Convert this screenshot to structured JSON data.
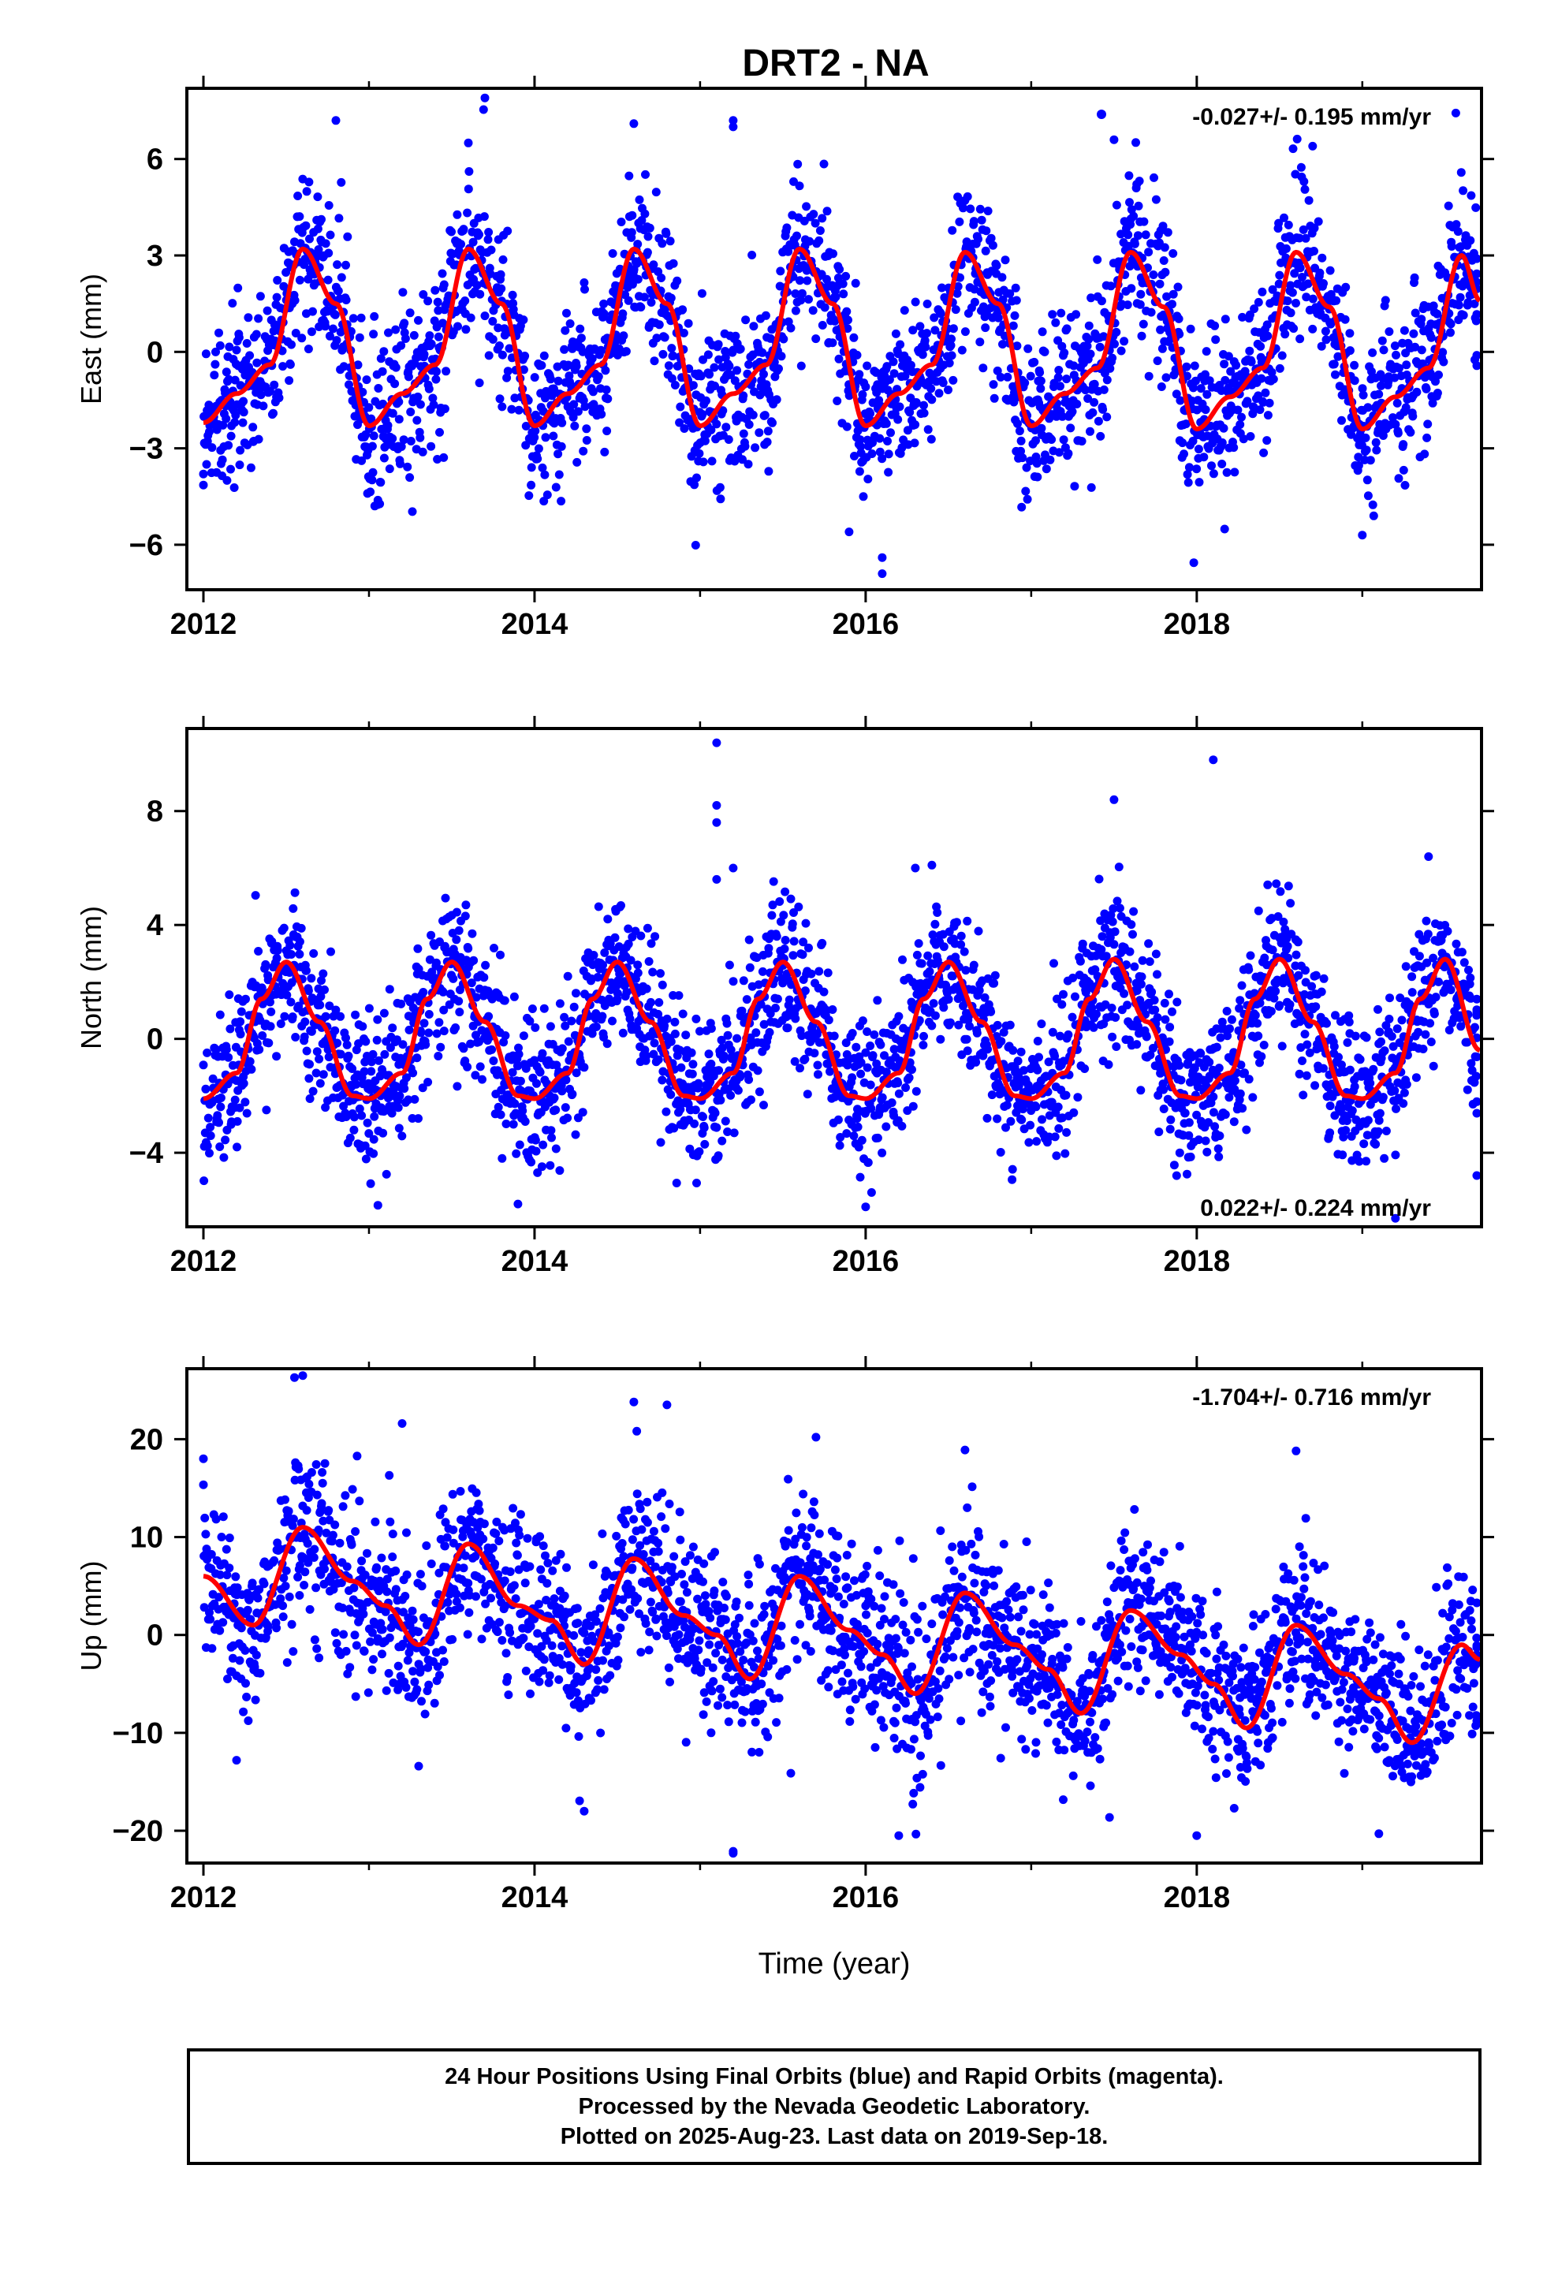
{
  "title": "DRT2 - NA",
  "caption": {
    "line1": "24 Hour Positions Using Final Orbits (blue) and Rapid Orbits (magenta).",
    "line2": "Processed by the Nevada Geodetic Laboratory.",
    "line3": "Plotted on 2025-Aug-23. Last data on 2019-Sep-18."
  },
  "colors": {
    "final_orbits": "#0000ff",
    "model_fit": "#ff0000",
    "frame": "#000000"
  },
  "chart_data": [
    {
      "type": "scatter",
      "component": "east",
      "ylabel": "East (mm)",
      "xlabel": "",
      "xlim": [
        2011.9,
        2019.72
      ],
      "ylim": [
        -7.4,
        8.2
      ],
      "xticks": [
        2012,
        2014,
        2016,
        2018
      ],
      "yticks": [
        -6,
        -3,
        0,
        3,
        6
      ],
      "yticklabels": [
        "−6",
        "−3",
        "0",
        "3",
        "6"
      ],
      "rate_label": "-0.027+/- 0.195 mm/yr",
      "rate_position": "top-right",
      "data_range": [
        2012.0,
        2019.71
      ],
      "fit_curve": [
        [
          2012.0,
          -2.2
        ],
        [
          2012.2,
          -1.3
        ],
        [
          2012.4,
          -0.4
        ],
        [
          2012.6,
          3.2
        ],
        [
          2012.8,
          1.5
        ],
        [
          2013.0,
          -2.3
        ],
        [
          2013.2,
          -1.3
        ],
        [
          2013.4,
          -0.4
        ],
        [
          2013.6,
          3.2
        ],
        [
          2013.8,
          1.5
        ],
        [
          2014.0,
          -2.3
        ],
        [
          2014.2,
          -1.3
        ],
        [
          2014.4,
          -0.4
        ],
        [
          2014.6,
          3.2
        ],
        [
          2014.8,
          1.5
        ],
        [
          2015.0,
          -2.3
        ],
        [
          2015.2,
          -1.3
        ],
        [
          2015.4,
          -0.4
        ],
        [
          2015.6,
          3.2
        ],
        [
          2015.8,
          1.5
        ],
        [
          2016.0,
          -2.3
        ],
        [
          2016.2,
          -1.3
        ],
        [
          2016.4,
          -0.4
        ],
        [
          2016.6,
          3.1
        ],
        [
          2016.8,
          1.5
        ],
        [
          2017.0,
          -2.3
        ],
        [
          2017.2,
          -1.3
        ],
        [
          2017.4,
          -0.5
        ],
        [
          2017.6,
          3.1
        ],
        [
          2017.8,
          1.4
        ],
        [
          2018.0,
          -2.4
        ],
        [
          2018.2,
          -1.4
        ],
        [
          2018.4,
          -0.5
        ],
        [
          2018.6,
          3.1
        ],
        [
          2018.8,
          1.4
        ],
        [
          2019.0,
          -2.4
        ],
        [
          2019.2,
          -1.4
        ],
        [
          2019.4,
          -0.5
        ],
        [
          2019.6,
          3.0
        ],
        [
          2019.71,
          1.6
        ]
      ],
      "spread": 1.25,
      "outliers": [
        [
          2012.8,
          7.2
        ],
        [
          2013.7,
          7.9
        ],
        [
          2014.6,
          7.1
        ],
        [
          2015.2,
          7.2
        ],
        [
          2015.2,
          7.0
        ],
        [
          2015.9,
          -5.6
        ],
        [
          2016.1,
          -6.4
        ],
        [
          2016.1,
          -6.9
        ],
        [
          2012.0,
          -3.8
        ],
        [
          2019.0,
          -5.7
        ],
        [
          2013.6,
          6.5
        ],
        [
          2017.5,
          6.6
        ],
        [
          2018.7,
          6.4
        ]
      ]
    },
    {
      "type": "scatter",
      "component": "north",
      "ylabel": "North (mm)",
      "xlabel": "",
      "xlim": [
        2011.9,
        2019.72
      ],
      "ylim": [
        -6.6,
        10.9
      ],
      "xticks": [
        2012,
        2014,
        2016,
        2018
      ],
      "yticks": [
        -4,
        0,
        4,
        8
      ],
      "yticklabels": [
        "−4",
        "0",
        "4",
        "8"
      ],
      "rate_label": "0.022+/- 0.224 mm/yr",
      "rate_position": "bottom-right",
      "data_range": [
        2012.0,
        2019.71
      ],
      "fit_curve": [
        [
          2012.0,
          -2.1
        ],
        [
          2012.2,
          -1.2
        ],
        [
          2012.35,
          1.4
        ],
        [
          2012.5,
          2.7
        ],
        [
          2012.7,
          0.6
        ],
        [
          2012.9,
          -2.0
        ],
        [
          2013.0,
          -2.1
        ],
        [
          2013.2,
          -1.2
        ],
        [
          2013.35,
          1.4
        ],
        [
          2013.5,
          2.7
        ],
        [
          2013.7,
          0.6
        ],
        [
          2013.9,
          -2.0
        ],
        [
          2014.0,
          -2.1
        ],
        [
          2014.2,
          -1.2
        ],
        [
          2014.35,
          1.4
        ],
        [
          2014.5,
          2.7
        ],
        [
          2014.7,
          0.6
        ],
        [
          2014.9,
          -2.0
        ],
        [
          2015.0,
          -2.1
        ],
        [
          2015.2,
          -1.2
        ],
        [
          2015.35,
          1.4
        ],
        [
          2015.5,
          2.7
        ],
        [
          2015.7,
          0.6
        ],
        [
          2015.9,
          -2.0
        ],
        [
          2016.0,
          -2.1
        ],
        [
          2016.2,
          -1.2
        ],
        [
          2016.35,
          1.4
        ],
        [
          2016.5,
          2.7
        ],
        [
          2016.7,
          0.6
        ],
        [
          2016.9,
          -2.0
        ],
        [
          2017.0,
          -2.1
        ],
        [
          2017.2,
          -1.2
        ],
        [
          2017.35,
          1.4
        ],
        [
          2017.5,
          2.8
        ],
        [
          2017.7,
          0.6
        ],
        [
          2017.9,
          -2.0
        ],
        [
          2018.0,
          -2.1
        ],
        [
          2018.2,
          -1.2
        ],
        [
          2018.35,
          1.4
        ],
        [
          2018.5,
          2.8
        ],
        [
          2018.7,
          0.6
        ],
        [
          2018.9,
          -2.0
        ],
        [
          2019.0,
          -2.1
        ],
        [
          2019.2,
          -1.2
        ],
        [
          2019.35,
          1.4
        ],
        [
          2019.5,
          2.8
        ],
        [
          2019.71,
          -0.4
        ]
      ],
      "spread": 1.35,
      "outliers": [
        [
          2015.1,
          10.4
        ],
        [
          2015.1,
          8.2
        ],
        [
          2015.1,
          7.6
        ],
        [
          2017.5,
          8.4
        ],
        [
          2018.1,
          9.8
        ],
        [
          2015.1,
          5.6
        ],
        [
          2015.2,
          6.0
        ],
        [
          2016.3,
          6.0
        ],
        [
          2016.4,
          6.1
        ],
        [
          2019.4,
          6.4
        ],
        [
          2019.2,
          -6.3
        ],
        [
          2019.7,
          -4.8
        ],
        [
          2013.9,
          -5.8
        ],
        [
          2016.0,
          -5.9
        ]
      ]
    },
    {
      "type": "scatter",
      "component": "up",
      "ylabel": "Up (mm)",
      "xlabel": "Time (year)",
      "xlim": [
        2011.9,
        2019.72
      ],
      "ylim": [
        -23.3,
        27.2
      ],
      "xticks": [
        2012,
        2014,
        2016,
        2018
      ],
      "yticks": [
        -20,
        -10,
        0,
        10,
        20
      ],
      "yticklabels": [
        "−20",
        "−10",
        "0",
        "10",
        "20"
      ],
      "rate_label": "-1.704+/- 0.716 mm/yr",
      "rate_position": "top-right",
      "data_range": [
        2012.0,
        2019.71
      ],
      "fit_curve": [
        [
          2012.0,
          6.0
        ],
        [
          2012.3,
          1.0
        ],
        [
          2012.6,
          11.0
        ],
        [
          2012.9,
          5.5
        ],
        [
          2013.1,
          3.0
        ],
        [
          2013.3,
          -1.0
        ],
        [
          2013.6,
          9.3
        ],
        [
          2013.9,
          3.0
        ],
        [
          2014.1,
          1.5
        ],
        [
          2014.3,
          -3.0
        ],
        [
          2014.6,
          7.8
        ],
        [
          2014.9,
          2.0
        ],
        [
          2015.1,
          0.0
        ],
        [
          2015.3,
          -4.5
        ],
        [
          2015.6,
          6.0
        ],
        [
          2015.9,
          0.5
        ],
        [
          2016.1,
          -2.0
        ],
        [
          2016.3,
          -6.0
        ],
        [
          2016.6,
          4.3
        ],
        [
          2016.9,
          -1.0
        ],
        [
          2017.1,
          -3.5
        ],
        [
          2017.3,
          -8.0
        ],
        [
          2017.6,
          2.5
        ],
        [
          2017.9,
          -2.0
        ],
        [
          2018.1,
          -5.0
        ],
        [
          2018.3,
          -9.5
        ],
        [
          2018.6,
          1.0
        ],
        [
          2018.9,
          -4.0
        ],
        [
          2019.1,
          -6.5
        ],
        [
          2019.3,
          -11.0
        ],
        [
          2019.6,
          -1.0
        ],
        [
          2019.71,
          -2.5
        ]
      ],
      "spread": 4.2,
      "outliers": [
        [
          2012.55,
          26.3
        ],
        [
          2012.6,
          26.5
        ],
        [
          2014.6,
          23.8
        ],
        [
          2014.8,
          23.5
        ],
        [
          2015.7,
          20.2
        ],
        [
          2016.6,
          18.9
        ],
        [
          2018.6,
          18.8
        ],
        [
          2012.0,
          18.0
        ],
        [
          2013.2,
          21.6
        ],
        [
          2015.2,
          -22.1
        ],
        [
          2015.2,
          -22.3
        ],
        [
          2016.2,
          -20.5
        ],
        [
          2018.0,
          -20.5
        ],
        [
          2019.1,
          -20.3
        ],
        [
          2014.3,
          -18.0
        ],
        [
          2012.2,
          -12.8
        ],
        [
          2013.3,
          -13.4
        ]
      ]
    }
  ]
}
